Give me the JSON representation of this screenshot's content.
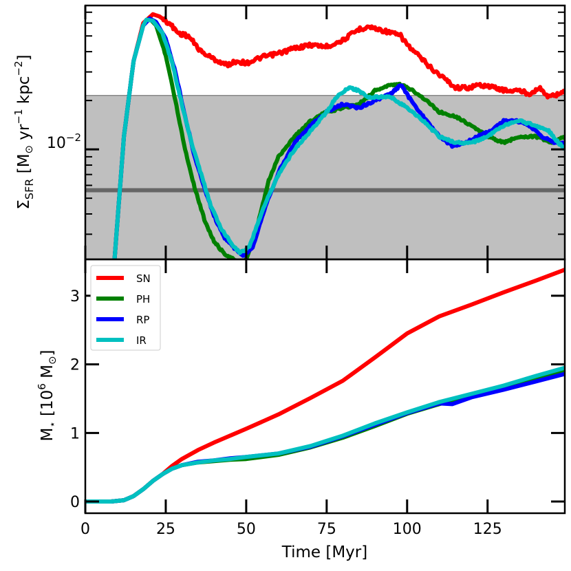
{
  "chart_data": [
    {
      "type": "line",
      "panel": "top",
      "ylabel_parts": {
        "sigma": "Σ",
        "sub": "SFR",
        "main": " [M",
        "sun": "⊙",
        "mid": " yr",
        "exp1": "−1",
        "mid2": " kpc",
        "exp2": "−2",
        "end": "]"
      },
      "yscale": "log",
      "xlim": [
        0,
        149
      ],
      "ylim": [
        0.0021,
        0.077
      ],
      "ytick_label": {
        "base": "10",
        "exp": "−2",
        "value": 0.01
      },
      "shaded_band": {
        "ymin": 0.0021,
        "ymax": 0.0215,
        "color": "#bfbfbf"
      },
      "hline": {
        "y": 0.0056,
        "color": "#666666"
      },
      "grey_line": {
        "y": 0.0215,
        "color": "#888888"
      },
      "series": [
        {
          "name": "SN",
          "color": "#ff0000",
          "x": [
            9,
            12,
            15,
            18,
            21,
            23,
            26,
            29,
            32,
            36,
            40,
            44,
            47,
            50,
            55,
            60,
            65,
            70,
            75,
            80,
            85,
            88,
            91,
            94,
            98,
            101,
            104,
            108,
            112,
            115,
            119,
            123,
            127,
            131,
            135,
            138,
            141,
            144,
            147,
            149
          ],
          "y": [
            0.002,
            0.012,
            0.035,
            0.06,
            0.068,
            0.066,
            0.06,
            0.052,
            0.05,
            0.04,
            0.036,
            0.033,
            0.035,
            0.034,
            0.037,
            0.039,
            0.042,
            0.044,
            0.043,
            0.047,
            0.055,
            0.057,
            0.055,
            0.053,
            0.05,
            0.042,
            0.037,
            0.031,
            0.027,
            0.024,
            0.024,
            0.025,
            0.024,
            0.023,
            0.023,
            0.022,
            0.024,
            0.021,
            0.022,
            0.023
          ]
        },
        {
          "name": "PH",
          "color": "#008000",
          "x": [
            9,
            12,
            15,
            18,
            20,
            22,
            25,
            28,
            31,
            34,
            37,
            40,
            43,
            46,
            48,
            50,
            53,
            57,
            60,
            65,
            70,
            75,
            80,
            85,
            90,
            95,
            98,
            102,
            106,
            110,
            115,
            120,
            125,
            130,
            135,
            140,
            145,
            149
          ],
          "y": [
            0.002,
            0.012,
            0.035,
            0.058,
            0.064,
            0.058,
            0.038,
            0.02,
            0.01,
            0.0058,
            0.0037,
            0.0027,
            0.0023,
            0.0021,
            0.002,
            0.0021,
            0.0031,
            0.0064,
            0.009,
            0.012,
            0.015,
            0.017,
            0.018,
            0.019,
            0.023,
            0.025,
            0.025,
            0.023,
            0.02,
            0.017,
            0.016,
            0.014,
            0.012,
            0.011,
            0.012,
            0.012,
            0.011,
            0.012
          ]
        },
        {
          "name": "RP",
          "color": "#0000ff",
          "x": [
            9,
            12,
            15,
            18,
            20,
            22,
            25,
            28,
            31,
            34,
            37,
            40,
            43,
            46,
            49,
            52,
            56,
            60,
            65,
            70,
            75,
            80,
            85,
            90,
            95,
            98,
            102,
            106,
            110,
            114,
            118,
            122,
            126,
            130,
            134,
            138,
            142,
            146,
            149
          ],
          "y": [
            0.002,
            0.012,
            0.035,
            0.058,
            0.064,
            0.061,
            0.048,
            0.03,
            0.016,
            0.009,
            0.0058,
            0.0039,
            0.0029,
            0.0025,
            0.0022,
            0.0025,
            0.0045,
            0.0072,
            0.011,
            0.014,
            0.017,
            0.019,
            0.018,
            0.02,
            0.022,
            0.025,
            0.019,
            0.015,
            0.012,
            0.0105,
            0.011,
            0.012,
            0.013,
            0.015,
            0.015,
            0.014,
            0.012,
            0.011,
            0.011
          ]
        },
        {
          "name": "IR",
          "color": "#00c0c0",
          "x": [
            9,
            12,
            15,
            18,
            19,
            21,
            24,
            27,
            30,
            33,
            36,
            39,
            42,
            45,
            48,
            51,
            55,
            60,
            65,
            70,
            75,
            78,
            82,
            85,
            88,
            92,
            95,
            100,
            105,
            110,
            115,
            120,
            125,
            130,
            135,
            140,
            144,
            147,
            149
          ],
          "y": [
            0.002,
            0.012,
            0.035,
            0.058,
            0.063,
            0.062,
            0.052,
            0.034,
            0.019,
            0.011,
            0.007,
            0.0045,
            0.0033,
            0.0027,
            0.0023,
            0.0025,
            0.0042,
            0.007,
            0.01,
            0.013,
            0.017,
            0.021,
            0.024,
            0.023,
            0.021,
            0.021,
            0.021,
            0.018,
            0.015,
            0.012,
            0.011,
            0.011,
            0.012,
            0.014,
            0.015,
            0.014,
            0.013,
            0.011,
            0.01
          ]
        }
      ]
    },
    {
      "type": "line",
      "panel": "bottom",
      "xlabel": "Time [Myr]",
      "ylabel_parts": {
        "m": "M",
        "star": "⋆",
        "main": "  [10",
        "exp": "6",
        "unit": " M",
        "sun": "⊙",
        "end": "]"
      },
      "xlim": [
        0,
        149
      ],
      "ylim": [
        -0.17,
        3.53
      ],
      "xticks": [
        0,
        25,
        50,
        75,
        100,
        125
      ],
      "xtick_labels": [
        "0",
        "25",
        "50",
        "75",
        "100",
        "125"
      ],
      "yticks": [
        0,
        1,
        2,
        3
      ],
      "ytick_labels": [
        "0",
        "1",
        "2",
        "3"
      ],
      "legend": {
        "location": "upper left",
        "entries": [
          "SN",
          "PH",
          "RP",
          "IR"
        ]
      },
      "series": [
        {
          "name": "SN",
          "color": "#ff0000",
          "x": [
            0,
            8,
            12,
            15,
            18,
            21,
            24,
            27,
            30,
            35,
            40,
            45,
            50,
            60,
            70,
            80,
            90,
            100,
            110,
            120,
            130,
            140,
            149
          ],
          "y": [
            0,
            0,
            0.02,
            0.08,
            0.18,
            0.3,
            0.4,
            0.52,
            0.62,
            0.75,
            0.86,
            0.96,
            1.06,
            1.27,
            1.51,
            1.76,
            2.1,
            2.45,
            2.7,
            2.87,
            3.05,
            3.22,
            3.38
          ]
        },
        {
          "name": "PH",
          "color": "#008000",
          "x": [
            0,
            8,
            12,
            15,
            18,
            21,
            24,
            27,
            30,
            35,
            40,
            45,
            50,
            60,
            70,
            80,
            90,
            100,
            110,
            120,
            130,
            140,
            149
          ],
          "y": [
            0,
            0,
            0.02,
            0.08,
            0.18,
            0.3,
            0.4,
            0.48,
            0.53,
            0.57,
            0.59,
            0.61,
            0.62,
            0.68,
            0.79,
            0.93,
            1.1,
            1.28,
            1.42,
            1.55,
            1.67,
            1.79,
            1.91
          ]
        },
        {
          "name": "RP",
          "color": "#0000ff",
          "x": [
            0,
            8,
            12,
            15,
            18,
            21,
            24,
            27,
            30,
            35,
            40,
            45,
            50,
            60,
            70,
            80,
            90,
            100,
            110,
            114,
            120,
            130,
            140,
            149
          ],
          "y": [
            0,
            0,
            0.02,
            0.08,
            0.18,
            0.3,
            0.4,
            0.48,
            0.53,
            0.58,
            0.6,
            0.63,
            0.65,
            0.7,
            0.8,
            0.95,
            1.12,
            1.29,
            1.43,
            1.42,
            1.52,
            1.63,
            1.75,
            1.86
          ]
        },
        {
          "name": "IR",
          "color": "#00c0c0",
          "x": [
            0,
            8,
            12,
            15,
            18,
            21,
            24,
            27,
            30,
            35,
            40,
            45,
            50,
            60,
            70,
            80,
            90,
            100,
            110,
            120,
            130,
            140,
            149
          ],
          "y": [
            0,
            0,
            0.02,
            0.08,
            0.18,
            0.3,
            0.4,
            0.48,
            0.53,
            0.57,
            0.6,
            0.62,
            0.65,
            0.7,
            0.81,
            0.96,
            1.14,
            1.3,
            1.45,
            1.57,
            1.69,
            1.83,
            1.95
          ]
        }
      ]
    }
  ]
}
